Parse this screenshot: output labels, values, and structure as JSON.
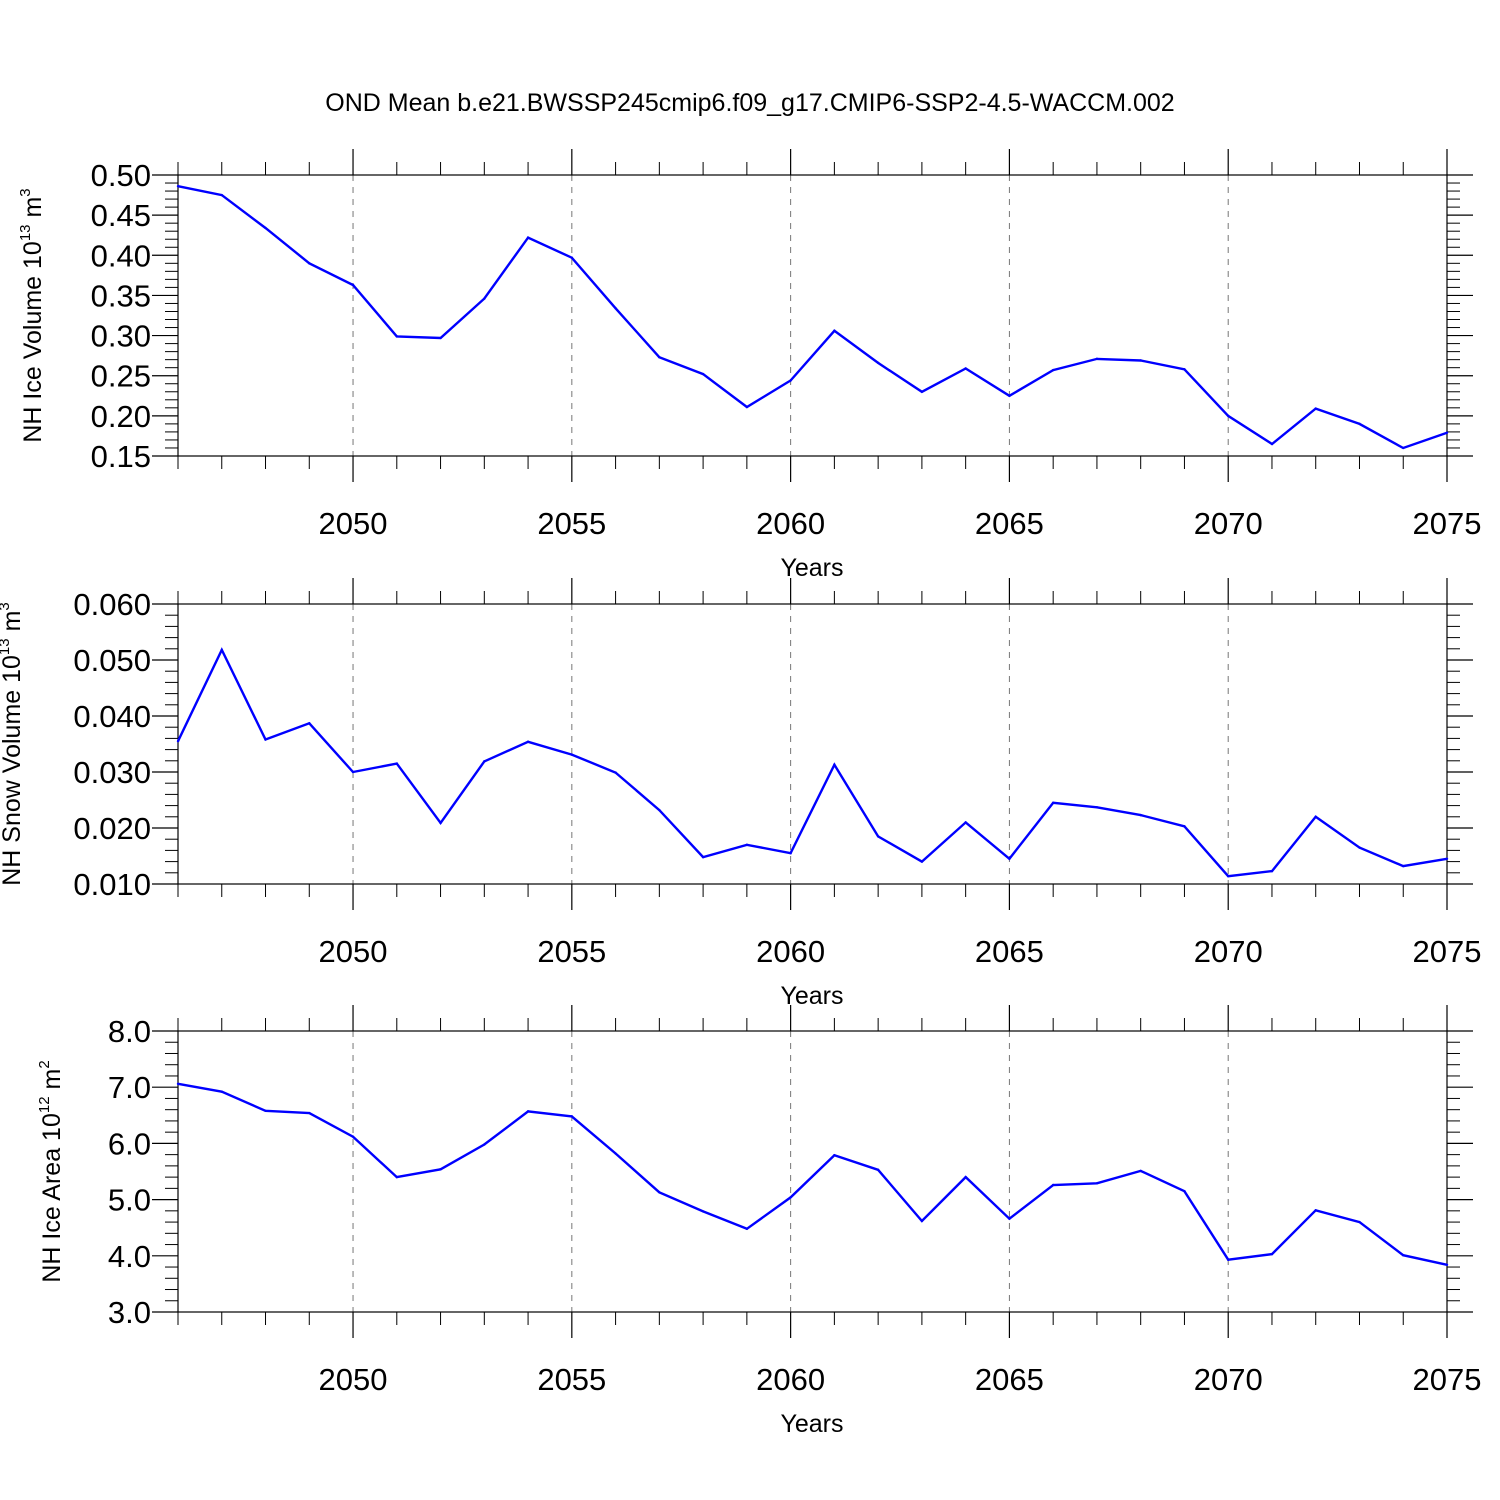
{
  "title": "OND Mean b.e21.BWSSP245cmip6.f09_g17.CMIP6-SSP2-4.5-WACCM.002",
  "chart_data": [
    {
      "type": "line",
      "title": "",
      "xlabel": "Years",
      "ylabel": {
        "text": "NH Ice Volume 10",
        "sup": "13",
        "unit": " m",
        "unit_sup": "3"
      },
      "xlim": [
        2046,
        2075
      ],
      "ylim": [
        0.15,
        0.5
      ],
      "x_ticks": [
        2050,
        2055,
        2060,
        2065,
        2070,
        2075
      ],
      "y_ticks": [
        "0.15",
        "0.20",
        "0.25",
        "0.30",
        "0.35",
        "0.40",
        "0.45",
        "0.50"
      ],
      "grid": "vertical dashed lines at major x ticks",
      "line_color": "#0000ff",
      "x": [
        2046,
        2047,
        2048,
        2049,
        2050,
        2051,
        2052,
        2053,
        2054,
        2055,
        2056,
        2057,
        2058,
        2059,
        2060,
        2061,
        2062,
        2063,
        2064,
        2065,
        2066,
        2067,
        2068,
        2069,
        2070,
        2071,
        2072,
        2073,
        2074,
        2075
      ],
      "y": [
        0.486,
        0.475,
        0.434,
        0.39,
        0.363,
        0.299,
        0.297,
        0.346,
        0.422,
        0.397,
        0.334,
        0.273,
        0.252,
        0.211,
        0.244,
        0.306,
        0.266,
        0.23,
        0.259,
        0.225,
        0.257,
        0.271,
        0.269,
        0.258,
        0.2,
        0.165,
        0.209,
        0.19,
        0.16,
        0.179
      ]
    },
    {
      "type": "line",
      "title": "",
      "xlabel": "Years",
      "ylabel": {
        "text": "NH Snow Volume 10",
        "sup": "13",
        "unit": " m",
        "unit_sup": "3"
      },
      "xlim": [
        2046,
        2075
      ],
      "ylim": [
        0.01,
        0.06
      ],
      "x_ticks": [
        2050,
        2055,
        2060,
        2065,
        2070,
        2075
      ],
      "y_ticks": [
        "0.010",
        "0.020",
        "0.030",
        "0.040",
        "0.050",
        "0.060"
      ],
      "grid": "vertical dashed lines at major x ticks",
      "line_color": "#0000ff",
      "x": [
        2046,
        2047,
        2048,
        2049,
        2050,
        2051,
        2052,
        2053,
        2054,
        2055,
        2056,
        2057,
        2058,
        2059,
        2060,
        2061,
        2062,
        2063,
        2064,
        2065,
        2066,
        2067,
        2068,
        2069,
        2070,
        2071,
        2072,
        2073,
        2074,
        2075
      ],
      "y": [
        0.0355,
        0.0518,
        0.0358,
        0.0387,
        0.03,
        0.0315,
        0.0209,
        0.0319,
        0.0354,
        0.0331,
        0.0299,
        0.0232,
        0.0148,
        0.017,
        0.0155,
        0.0313,
        0.0185,
        0.014,
        0.021,
        0.0145,
        0.0245,
        0.0237,
        0.0223,
        0.0203,
        0.0114,
        0.0123,
        0.022,
        0.0165,
        0.0132,
        0.0145
      ]
    },
    {
      "type": "line",
      "title": "",
      "xlabel": "Years",
      "ylabel": {
        "text": "NH Ice Area 10",
        "sup": "12",
        "unit": " m",
        "unit_sup": "2"
      },
      "xlim": [
        2046,
        2075
      ],
      "ylim": [
        3.0,
        8.0
      ],
      "x_ticks": [
        2050,
        2055,
        2060,
        2065,
        2070,
        2075
      ],
      "y_ticks": [
        "3.0",
        "4.0",
        "5.0",
        "6.0",
        "7.0",
        "8.0"
      ],
      "grid": "vertical dashed lines at major x ticks",
      "line_color": "#0000ff",
      "x": [
        2046,
        2047,
        2048,
        2049,
        2050,
        2051,
        2052,
        2053,
        2054,
        2055,
        2056,
        2057,
        2058,
        2059,
        2060,
        2061,
        2062,
        2063,
        2064,
        2065,
        2066,
        2067,
        2068,
        2069,
        2070,
        2071,
        2072,
        2073,
        2074,
        2075
      ],
      "y": [
        7.06,
        6.92,
        6.58,
        6.54,
        6.12,
        5.4,
        5.54,
        5.98,
        6.57,
        6.48,
        5.82,
        5.13,
        4.79,
        4.48,
        5.04,
        5.79,
        5.53,
        4.62,
        5.4,
        4.66,
        5.26,
        5.29,
        5.51,
        5.15,
        3.93,
        4.03,
        4.81,
        4.6,
        4.01,
        3.84
      ]
    }
  ]
}
